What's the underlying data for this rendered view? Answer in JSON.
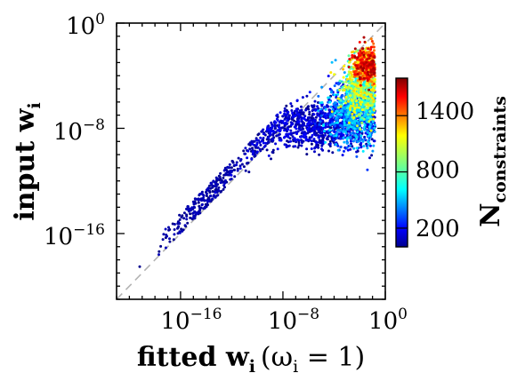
{
  "chart_data": {
    "type": "scatter",
    "title": "",
    "xlabel": {
      "text": "fitted w",
      "sub": "i",
      "paren": "(ω",
      "paren_sub": "i",
      "paren_end": " = 1)"
    },
    "ylabel": {
      "text": "input w",
      "sub": "i"
    },
    "x_scale": "log10",
    "y_scale": "log10",
    "xlim_exp": [
      -21,
      0
    ],
    "ylim_exp": [
      -21,
      0
    ],
    "x_ticks": [
      {
        "base": "10",
        "exp": "−16",
        "value_exp": -16
      },
      {
        "base": "10",
        "exp": "−8",
        "value_exp": -8
      },
      {
        "base": "10",
        "exp": "0",
        "value_exp": 0
      }
    ],
    "y_ticks": [
      {
        "base": "10",
        "exp": "0",
        "value_exp": 0
      },
      {
        "base": "10",
        "exp": "−8",
        "value_exp": -8
      },
      {
        "base": "10",
        "exp": "−16",
        "value_exp": -16
      }
    ],
    "reference_line": {
      "slope": 1,
      "style": "dashed",
      "color": "#b3b3b3"
    },
    "grid": false,
    "colorbar": {
      "label": "N",
      "label_sub": "constraints",
      "colormap": "jet",
      "range": [
        0,
        1800
      ],
      "ticks": [
        {
          "label": "200",
          "value": 200
        },
        {
          "label": "800",
          "value": 800
        },
        {
          "label": "1400",
          "value": 1400
        }
      ]
    },
    "clusters": [
      {
        "cx_exp": -5.5,
        "cy_exp": -7.8,
        "sx": 4.5,
        "sy": 1.5,
        "n": 900,
        "c_min": 0,
        "c_max": 220
      },
      {
        "cx_exp": -14.0,
        "cy_exp": -9.0,
        "sx": 3.2,
        "sy": 1.8,
        "n": 260,
        "c_min": 0,
        "c_max": 120
      },
      {
        "cx_exp": -2.6,
        "cy_exp": -7.0,
        "sx": 1.8,
        "sy": 2.0,
        "n": 700,
        "c_min": 150,
        "c_max": 650
      },
      {
        "cx_exp": -1.8,
        "cy_exp": -5.0,
        "sx": 1.4,
        "sy": 1.9,
        "n": 600,
        "c_min": 500,
        "c_max": 1200
      },
      {
        "cx_exp": -1.4,
        "cy_exp": -3.2,
        "sx": 1.0,
        "sy": 1.2,
        "n": 420,
        "c_min": 1000,
        "c_max": 1750
      }
    ]
  }
}
